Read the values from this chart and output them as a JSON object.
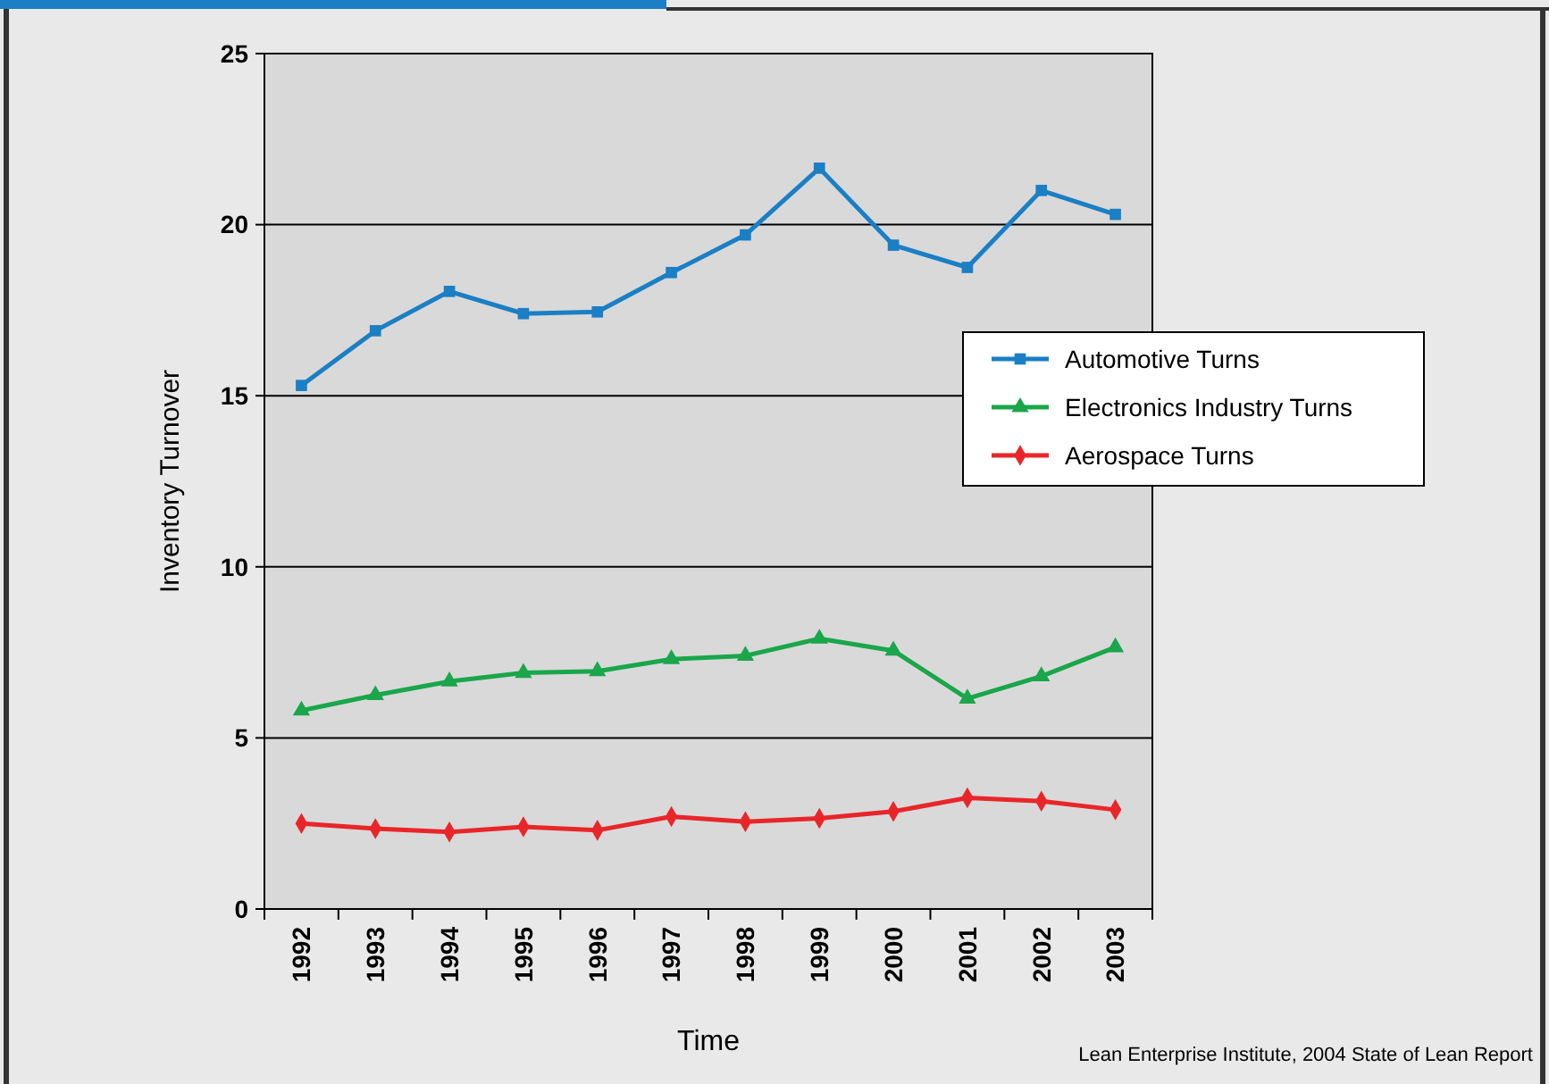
{
  "chart_data": {
    "type": "line",
    "xlabel": "Time",
    "ylabel": "Inventory Turnover",
    "categories": [
      "1992",
      "1993",
      "1994",
      "1995",
      "1996",
      "1997",
      "1998",
      "1999",
      "2000",
      "2001",
      "2002",
      "2003"
    ],
    "ylim": [
      0,
      25
    ],
    "yticks": [
      0,
      5,
      10,
      15,
      20,
      25
    ],
    "grid": "y",
    "legend": "right",
    "series": [
      {
        "name": "Automotive Turns",
        "color": "#1a7fc4",
        "marker": "square",
        "values": [
          15.3,
          16.9,
          18.05,
          17.4,
          17.45,
          18.6,
          19.7,
          21.65,
          19.4,
          18.75,
          21.0,
          20.3
        ]
      },
      {
        "name": "Electronics Industry Turns",
        "color": "#1aa64a",
        "marker": "triangle",
        "values": [
          5.8,
          6.25,
          6.65,
          6.9,
          6.95,
          7.3,
          7.4,
          7.9,
          7.55,
          6.15,
          6.8,
          7.65
        ]
      },
      {
        "name": "Aerospace Turns",
        "color": "#e8262a",
        "marker": "diamond",
        "values": [
          2.5,
          2.35,
          2.25,
          2.4,
          2.3,
          2.7,
          2.55,
          2.65,
          2.85,
          3.25,
          3.15,
          2.9
        ]
      }
    ],
    "annotations": [
      "Lean Enterprise Institute, 2004 State of Lean Report"
    ]
  }
}
